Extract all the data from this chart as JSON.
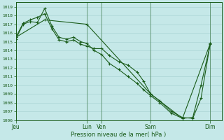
{
  "xlabel": "Pression niveau de la mer( hPa )",
  "ylim": [
    1006,
    1019.5
  ],
  "yticks": [
    1006,
    1007,
    1008,
    1009,
    1010,
    1011,
    1012,
    1013,
    1014,
    1015,
    1016,
    1017,
    1018,
    1019
  ],
  "background_color": "#c5e8e8",
  "grid_color": "#aad4d4",
  "line_color": "#1a5c1a",
  "tick_label_color": "#1a5c1a",
  "axis_label_color": "#1a5c1a",
  "day_labels": [
    "Jeu",
    "Lun",
    "Ven",
    "Sam",
    "Dim"
  ],
  "day_positions": [
    0.0,
    3.45,
    4.18,
    6.55,
    9.45
  ],
  "xlim": [
    0,
    10.0
  ],
  "series1_x": [
    0.0,
    0.35,
    0.7,
    1.05,
    1.4,
    1.75,
    2.1,
    2.45,
    2.8,
    3.15,
    3.45,
    3.8,
    4.18,
    4.55,
    5.0,
    5.45,
    5.9,
    6.2,
    6.55,
    7.0,
    7.55,
    8.1,
    8.6,
    9.0,
    9.45
  ],
  "series1_y": [
    1015.5,
    1017.1,
    1017.5,
    1017.8,
    1018.2,
    1016.5,
    1015.2,
    1015.0,
    1015.2,
    1014.7,
    1014.5,
    1014.2,
    1014.2,
    1013.4,
    1012.7,
    1012.3,
    1011.5,
    1010.5,
    1009.0,
    1008.2,
    1007.0,
    1006.3,
    1006.2,
    1008.5,
    1014.8
  ],
  "series2_x": [
    0.0,
    0.35,
    0.7,
    1.05,
    1.4,
    1.75,
    2.1,
    2.45,
    2.8,
    3.15,
    3.45,
    3.8,
    4.18,
    4.55,
    5.0,
    5.45,
    5.9,
    6.2,
    6.55,
    7.0,
    7.55,
    8.1,
    8.6,
    9.0,
    9.45
  ],
  "series2_y": [
    1015.3,
    1017.0,
    1017.3,
    1017.2,
    1018.8,
    1016.8,
    1015.5,
    1015.3,
    1015.5,
    1015.0,
    1014.8,
    1014.0,
    1013.5,
    1012.5,
    1011.8,
    1011.0,
    1010.2,
    1009.5,
    1008.8,
    1008.0,
    1006.8,
    1006.2,
    1006.3,
    1010.0,
    1014.7
  ],
  "series3_x": [
    0.0,
    1.4,
    3.45,
    6.55,
    8.1,
    9.45
  ],
  "series3_y": [
    1015.5,
    1017.5,
    1017.0,
    1009.0,
    1006.2,
    1014.8
  ]
}
